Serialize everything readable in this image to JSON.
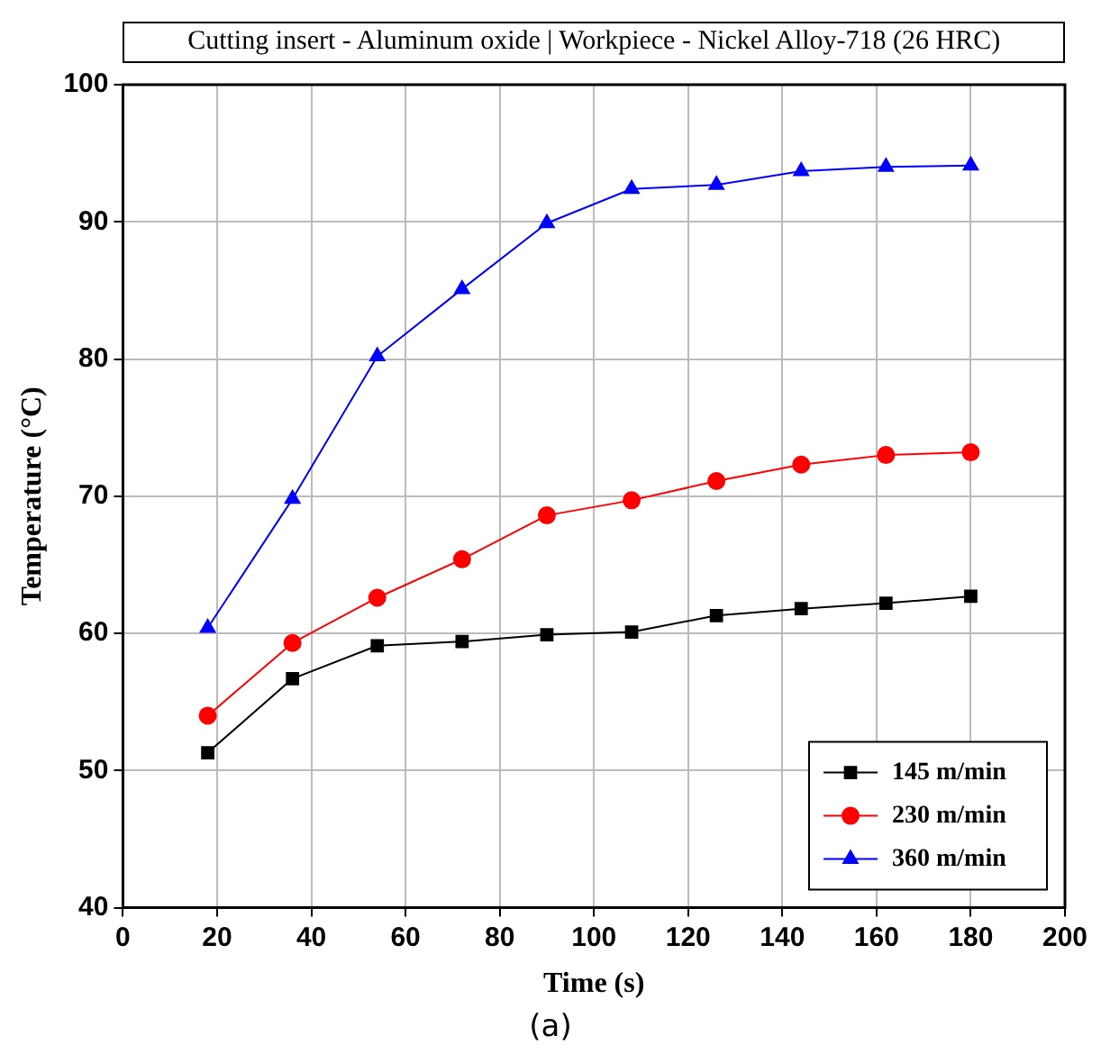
{
  "chart_data": {
    "type": "line",
    "title": "Cutting insert - Aluminum oxide | Workpiece - Nickel Alloy-718 (26 HRC)",
    "xlabel": "Time (s)",
    "ylabel": "Temperature (°C)",
    "annotations": [
      "(a)"
    ],
    "x": [
      18,
      36,
      54,
      72,
      90,
      108,
      126,
      144,
      162,
      180
    ],
    "series": [
      {
        "name": "145 m/min",
        "color": "#000000",
        "marker": "square",
        "values": [
          51.3,
          56.7,
          59.1,
          59.4,
          59.9,
          60.1,
          61.3,
          61.8,
          62.2,
          62.7
        ]
      },
      {
        "name": "230 m/min",
        "color": "#ff0000",
        "marker": "circle",
        "values": [
          54.0,
          59.3,
          62.6,
          65.4,
          68.6,
          69.7,
          71.1,
          72.3,
          73.0,
          73.2
        ]
      },
      {
        "name": "360 m/min",
        "color": "#0000ff",
        "marker": "triangle",
        "values": [
          60.4,
          69.8,
          80.2,
          85.1,
          89.9,
          92.4,
          92.7,
          93.7,
          94.0,
          94.1
        ]
      }
    ],
    "xlim": [
      0,
      200
    ],
    "xticks": [
      0,
      20,
      40,
      60,
      80,
      100,
      120,
      140,
      160,
      180,
      200
    ],
    "ylim": [
      40,
      100
    ],
    "yticks": [
      40,
      50,
      60,
      70,
      80,
      90,
      100
    ],
    "grid": true,
    "legend": "bottom right",
    "line_style": "solid"
  }
}
